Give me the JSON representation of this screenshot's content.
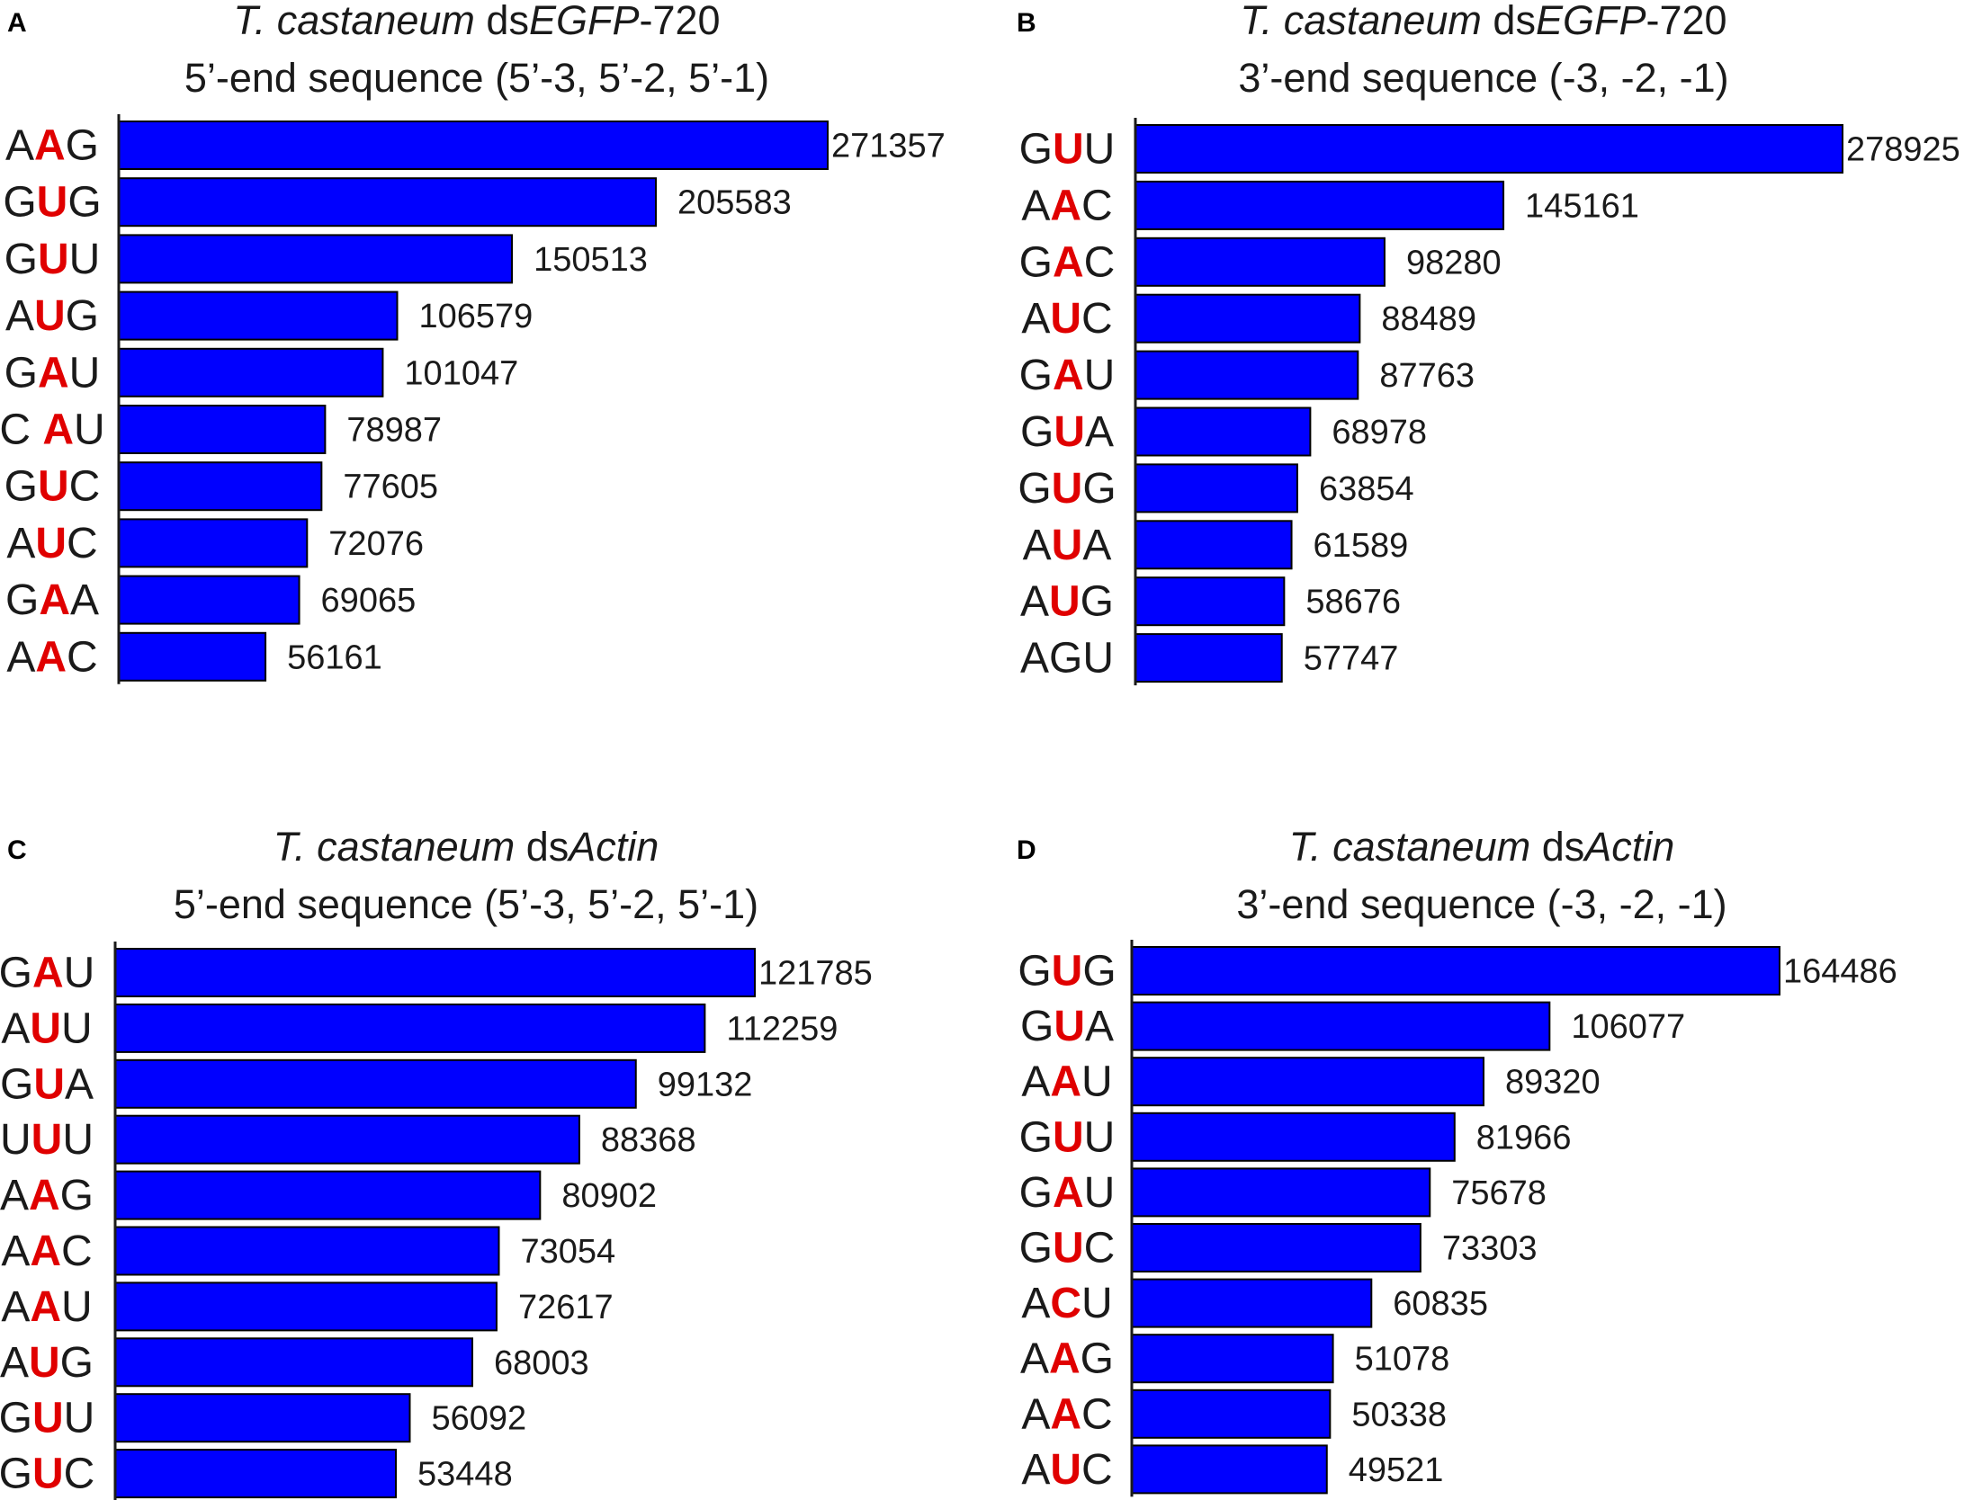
{
  "colors": {
    "bar": "#0000ff",
    "highlight": "#e00000",
    "text": "#1a1a1a"
  },
  "chart_data": [
    {
      "panel": "A",
      "type": "bar",
      "orientation": "horizontal",
      "title": [
        [
          {
            "t": "T. castaneum ",
            "i": true
          },
          {
            "t": "ds"
          },
          {
            "t": "EGFP",
            "i": true
          },
          {
            "t": "-720"
          }
        ],
        [
          {
            "t": "5’-end sequence (5’-3, 5’-2, 5’-1)"
          }
        ]
      ],
      "categories": [
        [
          "A",
          "A",
          "G"
        ],
        [
          "G",
          "U",
          "G"
        ],
        [
          "G",
          "U",
          "U"
        ],
        [
          "A",
          "U",
          "G"
        ],
        [
          "G",
          "A",
          "U"
        ],
        [
          "C ",
          "A",
          "U"
        ],
        [
          "G",
          "U",
          "C"
        ],
        [
          "A",
          "U",
          "C"
        ],
        [
          "G",
          "A",
          "A"
        ],
        [
          "A",
          "A",
          "C"
        ]
      ],
      "values": [
        271357,
        205583,
        150513,
        106579,
        101047,
        78987,
        77605,
        72076,
        69065,
        56161
      ],
      "xlim": [
        0,
        271357
      ]
    },
    {
      "panel": "B",
      "type": "bar",
      "orientation": "horizontal",
      "title": [
        [
          {
            "t": "T. castaneum ",
            "i": true
          },
          {
            "t": "ds"
          },
          {
            "t": "EGFP",
            "i": true
          },
          {
            "t": "-720"
          }
        ],
        [
          {
            "t": "3’-end sequence (-3, -2, -1)"
          }
        ]
      ],
      "categories": [
        [
          "G",
          "U",
          "U"
        ],
        [
          "A",
          "A",
          "C"
        ],
        [
          "G",
          "A",
          "C"
        ],
        [
          "A",
          "U",
          "C"
        ],
        [
          "G",
          "A",
          "U"
        ],
        [
          "G",
          "U",
          "A"
        ],
        [
          "G",
          "U",
          "G"
        ],
        [
          "A",
          "U",
          "A"
        ],
        [
          "A",
          "U",
          "G"
        ],
        [
          "A",
          "G",
          "U"
        ]
      ],
      "highlight_off": [
        9
      ],
      "values": [
        278925,
        145161,
        98280,
        88489,
        87763,
        68978,
        63854,
        61589,
        58676,
        57747
      ],
      "xlim": [
        0,
        278925
      ]
    },
    {
      "panel": "C",
      "type": "bar",
      "orientation": "horizontal",
      "title": [
        [
          {
            "t": "T. castaneum ",
            "i": true
          },
          {
            "t": "ds"
          },
          {
            "t": "Actin",
            "i": true
          }
        ],
        [
          {
            "t": "5’-end sequence (5’-3, 5’-2, 5’-1)"
          }
        ]
      ],
      "categories": [
        [
          "G",
          "A",
          "U"
        ],
        [
          "A",
          "U",
          "U"
        ],
        [
          "G",
          "U",
          "A"
        ],
        [
          "U",
          "U",
          "U"
        ],
        [
          "A",
          "A",
          "G"
        ],
        [
          "A",
          "A",
          "C"
        ],
        [
          "A",
          "A",
          "U"
        ],
        [
          "A",
          "U",
          "G"
        ],
        [
          "G",
          "U",
          "U"
        ],
        [
          "G",
          "U",
          "C"
        ]
      ],
      "values": [
        121785,
        112259,
        99132,
        88368,
        80902,
        73054,
        72617,
        68003,
        56092,
        53448
      ],
      "xlim": [
        0,
        121785
      ]
    },
    {
      "panel": "D",
      "type": "bar",
      "orientation": "horizontal",
      "title": [
        [
          {
            "t": "T. castaneum ",
            "i": true
          },
          {
            "t": "ds"
          },
          {
            "t": "Actin",
            "i": true
          }
        ],
        [
          {
            "t": "3’-end sequence (-3, -2, -1)"
          }
        ]
      ],
      "categories": [
        [
          "G",
          "U",
          "G"
        ],
        [
          "G",
          "U",
          "A"
        ],
        [
          "A",
          "A",
          "U"
        ],
        [
          "G",
          "U",
          "U"
        ],
        [
          "G",
          "A",
          "U"
        ],
        [
          "G",
          "U",
          "C"
        ],
        [
          "A",
          "C",
          "U"
        ],
        [
          "A",
          "A",
          "G"
        ],
        [
          "A",
          "A",
          "C"
        ],
        [
          "A",
          "U",
          "C"
        ]
      ],
      "values": [
        164486,
        106077,
        89320,
        81966,
        75678,
        73303,
        60835,
        51078,
        50338,
        49521
      ],
      "xlim": [
        0,
        164486
      ]
    }
  ]
}
